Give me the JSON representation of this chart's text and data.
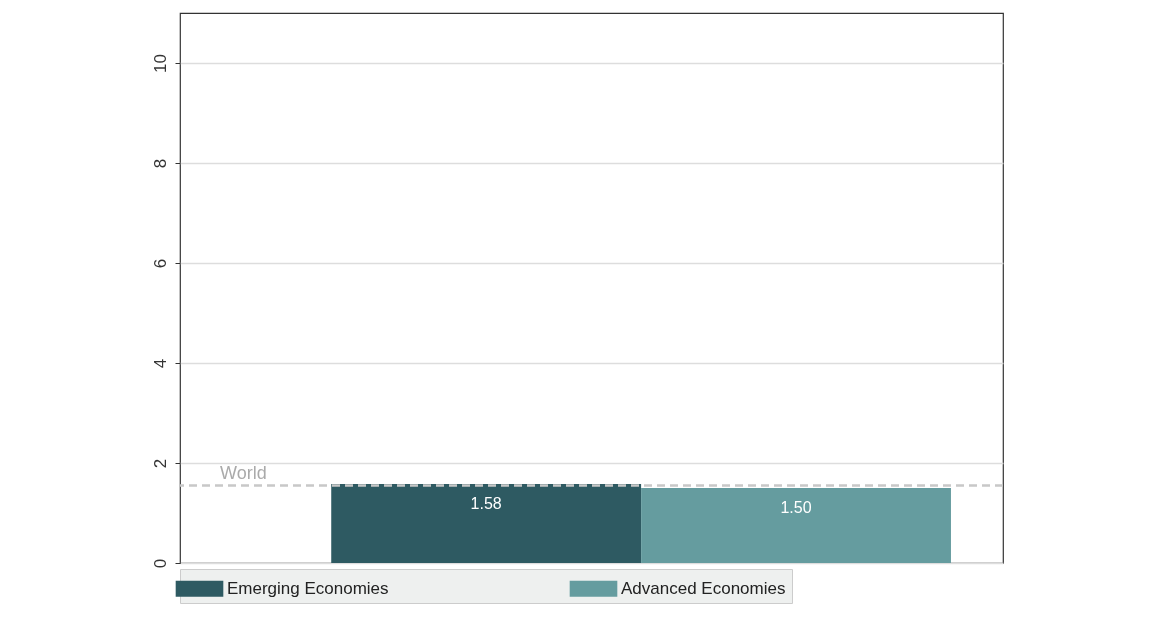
{
  "chart_data": {
    "type": "bar",
    "categories": [
      null
    ],
    "series": [
      {
        "name": "Emerging Economies",
        "color": "#2e5a62",
        "values": [
          1.58
        ],
        "value_labels": [
          "1.58"
        ]
      },
      {
        "name": "Advanced Economies",
        "color": "#659c9f",
        "values": [
          1.5
        ],
        "value_labels": [
          "1.50"
        ]
      }
    ],
    "ylim": [
      0,
      11
    ],
    "yticks": [
      0,
      2,
      4,
      6,
      8,
      10
    ],
    "grid": "y",
    "tick_labels": "y",
    "legend": "bottom",
    "ref_lines": [
      {
        "axis": "y",
        "value": 1.55,
        "label": "World",
        "color": "#c8c8c8",
        "line_style": "dashed"
      }
    ]
  }
}
